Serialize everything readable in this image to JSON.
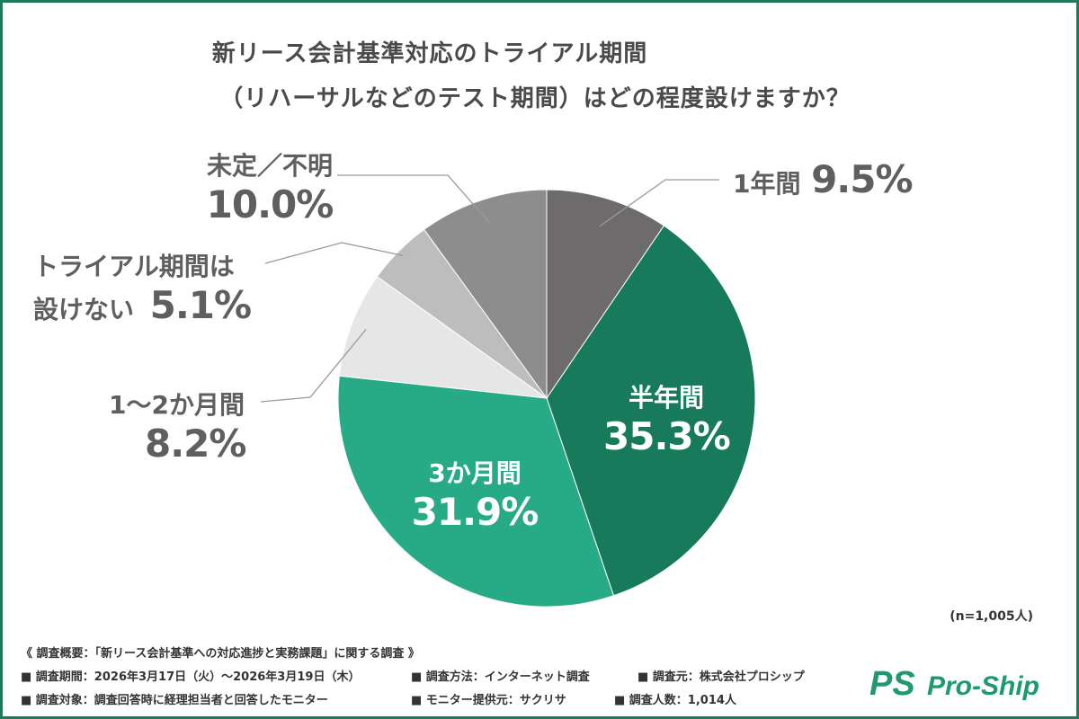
{
  "title": {
    "line1": "新リース会計基準対応のトライアル期間",
    "line2": "（リハーサルなどのテスト期間）はどの程度設けますか？"
  },
  "chart_data": {
    "type": "pie",
    "title": "新リース会計基準対応のトライアル期間（リハーサルなどのテスト期間）はどの程度設けますか？",
    "start": "12 o'clock",
    "direction": "clockwise",
    "slices": [
      {
        "label": "1年間",
        "value": 9.5,
        "value_label": "9.5%",
        "color": "#6d6b6c"
      },
      {
        "label": "半年間",
        "value": 35.3,
        "value_label": "35.3%",
        "color": "#167a5b"
      },
      {
        "label": "3か月間",
        "value": 31.9,
        "value_label": "31.9%",
        "color": "#27ab86"
      },
      {
        "label": "1〜2か月間",
        "value": 8.2,
        "value_label": "8.2%",
        "color": "#e6e6e6"
      },
      {
        "label": "トライアル期間は 設けない",
        "label_line1": "トライアル期間は",
        "label_line2": "設けない",
        "value": 5.1,
        "value_label": "5.1%",
        "color": "#bdbdbd"
      },
      {
        "label": "未定／不明",
        "value": 10.0,
        "value_label": "10.0%",
        "color": "#8d8d8d"
      }
    ],
    "sample_size": "(n=1,005人)"
  },
  "notes": {
    "heading": "《 調査概要：「新リース会計基準への対応進捗と実務課題」に関する調査 》",
    "period": "■ 調査期間：2026年3月17日（火）〜2026年3月19日（木）",
    "method": "■ 調査方法：インターネット調査",
    "org": "■ 調査元：株式会社プロシップ",
    "target": "■ 調査対象：調査回答時に経理担当者と回答したモニター",
    "provider": "■ モニター提供元：サクリサ",
    "count": "■ 調査人数：1,014人"
  },
  "brand": {
    "logo_mark": "PS",
    "logo_text": "Pro-Ship",
    "color": "#1f9a6e"
  }
}
